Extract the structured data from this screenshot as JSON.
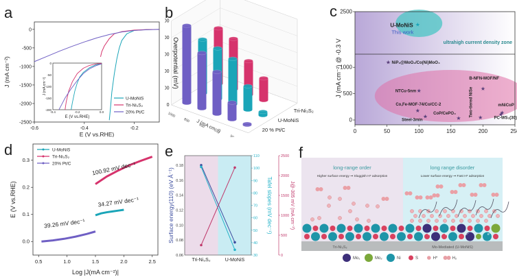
{
  "panel_labels": {
    "a": "a",
    "b": "b",
    "c": "c",
    "d": "d",
    "e": "e",
    "f": "f"
  },
  "colors": {
    "u_monis": "#1aa5b8",
    "tri_ni3s2": "#d6336c",
    "pt_c": "#6f5fc4",
    "surface_energy": "#3b4c9e",
    "tafel": "#27b3c9",
    "jcurrent": "#c0396b"
  },
  "chart_data": [
    {
      "id": "a",
      "type": "line",
      "title": "",
      "xlabel": "E (V vs.RHE)",
      "ylabel": "J (mA cm⁻²)",
      "xlim": [
        -0.6,
        -0.1
      ],
      "ylim": [
        -2500,
        200
      ],
      "xticks": [
        -0.6,
        -0.4,
        -0.2
      ],
      "xtick_labels": [
        "-0.6",
        "-0.4",
        "-0.2"
      ],
      "yticks": [
        0,
        -500,
        -1000,
        -1500,
        -2000,
        -2500
      ],
      "ytick_labels": [
        "0",
        "-500",
        "-1000",
        "-1500",
        "-2000",
        "-2500"
      ],
      "legend": "bottom-right",
      "series": [
        {
          "name": "U-MoNiS",
          "color_key": "u_monis",
          "x": [
            -0.1,
            -0.15,
            -0.2,
            -0.23,
            -0.25,
            -0.26,
            -0.27,
            -0.28,
            -0.29,
            -0.295,
            -0.3
          ],
          "y": [
            0,
            -5,
            -30,
            -120,
            -300,
            -500,
            -800,
            -1200,
            -1700,
            -2100,
            -2450
          ]
        },
        {
          "name": "Tri-Ni₃S₂",
          "color_key": "tri_ni3s2",
          "x": [
            -0.1,
            -0.15,
            -0.2,
            -0.25,
            -0.28,
            -0.3,
            -0.32,
            -0.33,
            -0.335
          ],
          "y": [
            0,
            -5,
            -20,
            -60,
            -120,
            -250,
            -450,
            -600,
            -740
          ]
        },
        {
          "name": "20% Pt/C",
          "color_key": "pt_c",
          "x": [
            -0.1,
            -0.15,
            -0.2,
            -0.25,
            -0.3,
            -0.35,
            -0.4,
            -0.45,
            -0.5,
            -0.55,
            -0.6
          ],
          "y": [
            0,
            -10,
            -30,
            -70,
            -140,
            -230,
            -340,
            -460,
            -590,
            -730,
            -870
          ]
        }
      ],
      "inset": {
        "xlabel": "E (V vs.RHE)",
        "ylabel": "J (mA cm⁻²)",
        "xlim": [
          -0.4,
          0.0
        ],
        "ylim": [
          -200,
          0
        ],
        "xtick_labels": [
          "-0.4",
          "-0.2",
          "0.0"
        ],
        "ytick_labels": [
          "0",
          "-50",
          "-100",
          "-150",
          "-200"
        ],
        "series": [
          {
            "name": "U-MoNiS",
            "color_key": "u_monis",
            "x": [
              0.0,
              -0.05,
              -0.1,
              -0.15,
              -0.18,
              -0.2,
              -0.22,
              -0.24,
              -0.25
            ],
            "y": [
              -2,
              -8,
              -20,
              -40,
              -60,
              -85,
              -120,
              -170,
              -200
            ]
          },
          {
            "name": "Tri-Ni₃S₂",
            "color_key": "tri_ni3s2",
            "x": [
              0.0,
              -0.05,
              -0.1,
              -0.15,
              -0.2,
              -0.24,
              -0.27,
              -0.29,
              -0.3
            ],
            "y": [
              -1,
              -4,
              -10,
              -22,
              -45,
              -80,
              -120,
              -165,
              -200
            ]
          },
          {
            "name": "20% Pt/C",
            "color_key": "pt_c",
            "x": [
              0.0,
              -0.05,
              -0.1,
              -0.15,
              -0.2,
              -0.25,
              -0.3,
              -0.33,
              -0.35
            ],
            "y": [
              -3,
              -12,
              -25,
              -45,
              -75,
              -110,
              -150,
              -180,
              -200
            ]
          }
        ]
      }
    },
    {
      "id": "b",
      "type": "bar",
      "title": "",
      "zlabel": "Overpotential (mV)",
      "xlabel": "J (mA cm⁻²)",
      "zlim": [
        0,
        500
      ],
      "zticks": [
        0,
        100,
        200,
        300,
        400,
        500
      ],
      "categories": [
        "1000",
        "800",
        "500",
        "100",
        "50"
      ],
      "series": [
        {
          "name": "20 % Pt/C",
          "color_key": "pt_c",
          "values": [
            460,
            330,
            250,
            100,
            5
          ]
        },
        {
          "name": "U-MoNiS",
          "color_key": "u_monis",
          "values": [
            320,
            300,
            270,
            140,
            20
          ]
        },
        {
          "name": "Tri-Ni₃S₂",
          "color_key": "tri_ni3s2",
          "values": [
            330,
            300,
            200,
            130,
            null
          ]
        }
      ]
    },
    {
      "id": "c",
      "type": "scatter",
      "title": "",
      "xlabel": "η (mV) @10mA cm⁻²",
      "ylabel": "J (mA cm⁻²) @ -0.3 V",
      "xlim": [
        0,
        250
      ],
      "xticks": [
        0,
        50,
        100,
        150,
        200,
        250
      ],
      "yticks": [
        0,
        500,
        1000,
        2500
      ],
      "axis_break": true,
      "zone_label": "ultrahigh current density zone",
      "highlight_label": "This work",
      "points": [
        {
          "label": "U-MoNiS",
          "x": 98,
          "y": 2200,
          "highlight": true
        },
        {
          "label": "NiP₂@MoO₂/Co(Ni)MoO₄",
          "x": 52,
          "y": 1100
        },
        {
          "label": "NTCu-5nm",
          "x": 100,
          "y": 560
        },
        {
          "label": "B-NFN-MOF/NF",
          "x": 200,
          "y": 600
        },
        {
          "label": "Co,Fe-MOF-74/Co/CC-2",
          "x": 98,
          "y": 180
        },
        {
          "label": "Steel-3min",
          "x": 110,
          "y": 70
        },
        {
          "label": "CoP/CePO₄",
          "x": 162,
          "y": 40
        },
        {
          "label": "Two-tiered NiSe",
          "x": 196,
          "y": 50
        },
        {
          "label": "mNiCoP",
          "x": 230,
          "y": 140
        },
        {
          "label": "PC-WS₂(30)",
          "x": 228,
          "y": 110
        }
      ]
    },
    {
      "id": "d",
      "type": "line",
      "title": "",
      "xlabel": "Log |J(mA cm⁻²)|",
      "ylabel": "E (V vs.RHE)",
      "xlim": [
        0.4,
        2.6
      ],
      "ylim": [
        -0.05,
        0.36
      ],
      "xticks": [
        0.5,
        1.0,
        1.5,
        2.0,
        2.5
      ],
      "xtick_labels": [
        "0.5",
        "1.0",
        "1.5",
        "2.0",
        "2.5"
      ],
      "yticks": [
        0.0,
        0.1,
        0.2,
        0.3
      ],
      "ytick_labels": [
        "0.0",
        "0.1",
        "0.2",
        "0.3"
      ],
      "legend": "top-left",
      "series": [
        {
          "name": "U-MoNiS",
          "color_key": "u_monis",
          "x": [
            1.5,
            1.6,
            1.7,
            1.8,
            1.9,
            2.0
          ],
          "y": [
            0.097,
            0.104,
            0.108,
            0.111,
            0.114,
            0.117
          ],
          "annotation": "34.27 mV dec⁻¹"
        },
        {
          "name": "Tri-Ni₃S₂",
          "color_key": "tri_ni3s2",
          "x": [
            1.5,
            1.7,
            1.9,
            2.1,
            2.3,
            2.5
          ],
          "y": [
            0.212,
            0.24,
            0.262,
            0.282,
            0.298,
            0.313
          ],
          "annotation": "100.92 mV dec⁻¹"
        },
        {
          "name": "20% Pt/C",
          "color_key": "pt_c",
          "x": [
            0.55,
            0.75,
            0.95,
            1.15,
            1.35,
            1.5
          ],
          "y": [
            0.0,
            0.004,
            0.01,
            0.018,
            0.028,
            0.037
          ],
          "annotation": "39.26 mV dec⁻¹"
        }
      ]
    },
    {
      "id": "e",
      "type": "line",
      "title": "",
      "categories": [
        "Tri-Ni₃S₂",
        "U-MoNiS"
      ],
      "ylabel_left": "Surface energy(110) (eV Å⁻¹)",
      "ylabel_mid": "Tafel slopes (mV dec⁻¹)",
      "ylabel_right": "J@-305 mV (mA cm⁻²)",
      "ylim_left": [
        0.06,
        0.19
      ],
      "yticks_left": [
        "0.06",
        "0.08",
        "0.10",
        "0.12",
        "0.14",
        "0.16",
        "0.18"
      ],
      "ylim_mid": [
        30,
        110
      ],
      "yticks_mid": [
        "30",
        "40",
        "50",
        "60",
        "70",
        "80",
        "90",
        "100",
        "110"
      ],
      "ylim_right": [
        0,
        2500
      ],
      "yticks_right": [
        "0",
        "500",
        "1000",
        "1500",
        "2000",
        "2500"
      ],
      "series": [
        {
          "name": "Surface energy",
          "color_key": "surface_energy",
          "axis": "left",
          "values": [
            0.18,
            0.077
          ]
        },
        {
          "name": "Tafel slopes",
          "color_key": "tafel",
          "axis": "mid",
          "values": [
            100.92,
            34.27
          ]
        },
        {
          "name": "J@-305 mV",
          "color_key": "jcurrent",
          "axis": "right",
          "values": [
            250,
            2200
          ]
        }
      ]
    }
  ],
  "schematic_f": {
    "left_title": "long-range order",
    "left_subtitle": "Higher surface energy ➞ Sluggish H* adsorption",
    "right_title": "long range disorder",
    "right_subtitle": "Lower surface energy ➞ Fast H* adsorption",
    "left_substrate": "Tri-Ni₃S₂",
    "right_substrate": "Mo-Mediated (U-MoNiS)",
    "electron_label": "e⁻",
    "legend": [
      {
        "label": "Mo₁",
        "color": "#3d2f7a"
      },
      {
        "label": "Mo₂",
        "color": "#7ba83a"
      },
      {
        "label": "Ni",
        "color": "#1e95a8"
      },
      {
        "label": "S",
        "color": "#d9415f"
      },
      {
        "label": "H*",
        "color": "#e8a0a6"
      },
      {
        "label": "H₂",
        "color": "#e8a0a6"
      }
    ]
  }
}
